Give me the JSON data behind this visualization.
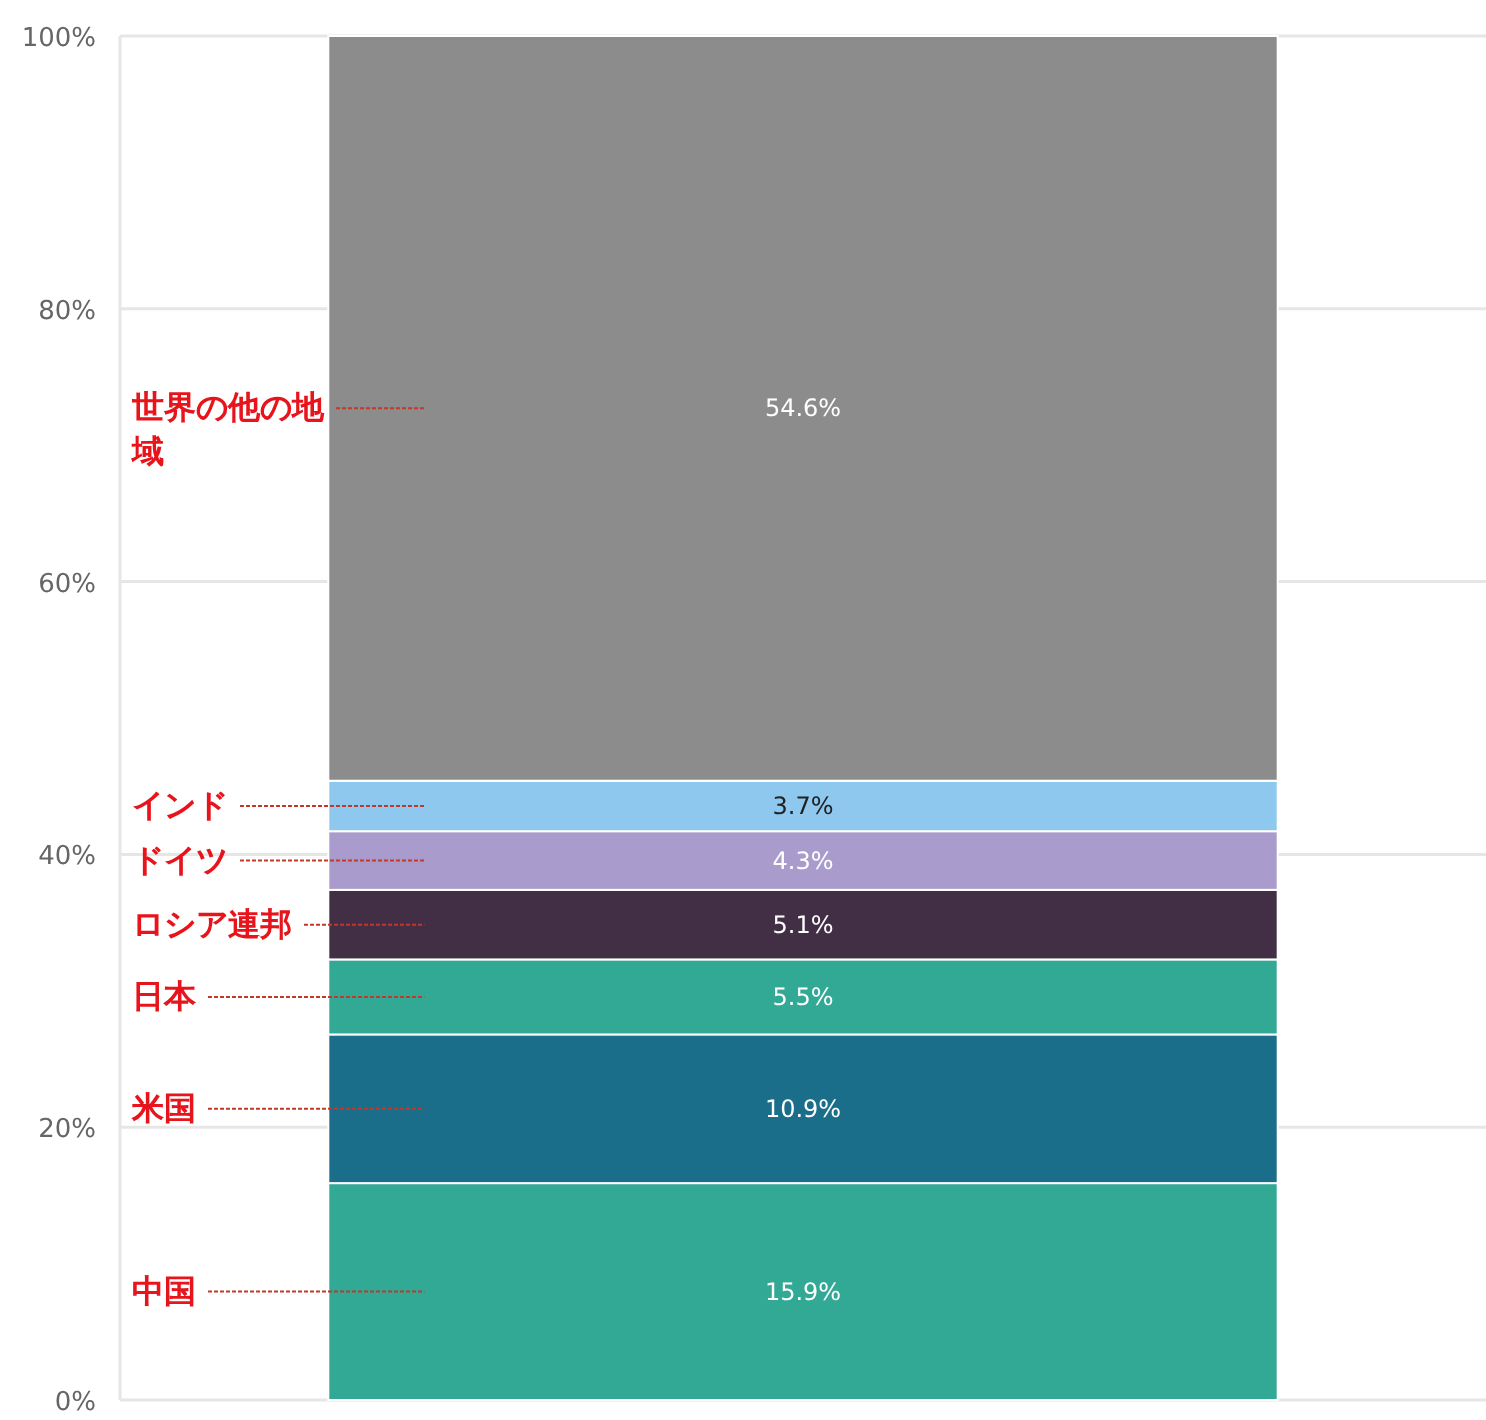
{
  "chart_data": {
    "type": "bar",
    "stacked": true,
    "categories": [
      null
    ],
    "grid": "y",
    "ylim": [
      0,
      100
    ],
    "yticks": [
      {
        "value": 0,
        "label": "0%"
      },
      {
        "value": 20,
        "label": "20%"
      },
      {
        "value": 40,
        "label": "40%"
      },
      {
        "value": 60,
        "label": "60%"
      },
      {
        "value": 80,
        "label": "80%"
      },
      {
        "value": 100,
        "label": "100%"
      }
    ],
    "series": [
      {
        "name": "中国",
        "color": "#31a994",
        "values": [
          15.9
        ],
        "value_labels": [
          "15.9%"
        ]
      },
      {
        "name": "米国",
        "color": "#1b6e8a",
        "values": [
          10.9
        ],
        "value_labels": [
          "10.9%"
        ]
      },
      {
        "name": "日本",
        "color": "#31a994",
        "values": [
          5.5
        ],
        "value_labels": [
          "5.5%"
        ]
      },
      {
        "name": "ロシア連邦",
        "color": "#432f45",
        "values": [
          5.1
        ],
        "value_labels": [
          "5.1%"
        ]
      },
      {
        "name": "ドイツ",
        "color": "#a99ccc",
        "values": [
          4.3
        ],
        "value_labels": [
          "4.3%"
        ]
      },
      {
        "name": "インド",
        "color": "#8fc8ef",
        "values": [
          3.7
        ],
        "value_labels": [
          "3.7%"
        ]
      },
      {
        "name": "世界の他の地域",
        "color": "#8c8c8c",
        "values": [
          54.6
        ],
        "value_labels": [
          "54.6%"
        ]
      }
    ]
  }
}
